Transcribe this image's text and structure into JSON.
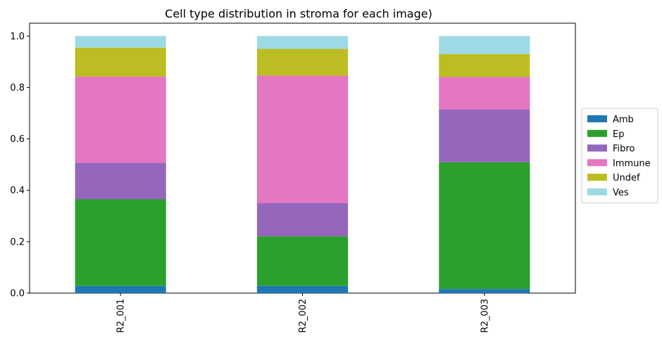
{
  "chart_data": {
    "type": "bar",
    "stacked": true,
    "title": "Cell type distribution in stroma for each image)",
    "xlabel": "",
    "ylabel": "",
    "ylim": [
      0,
      1.05
    ],
    "yticks": [
      "0.0",
      "0.2",
      "0.4",
      "0.6",
      "0.8",
      "1.0"
    ],
    "categories": [
      "R2_001",
      "R2_002",
      "R2_003"
    ],
    "series": [
      {
        "name": "Amb",
        "color": "#1f77b4",
        "values": [
          0.028,
          0.028,
          0.016
        ]
      },
      {
        "name": "Ep",
        "color": "#2ca02c",
        "values": [
          0.337,
          0.193,
          0.493
        ]
      },
      {
        "name": "Fibro",
        "color": "#9467bd",
        "values": [
          0.142,
          0.129,
          0.205
        ]
      },
      {
        "name": "Immune",
        "color": "#e377c2",
        "values": [
          0.335,
          0.496,
          0.127
        ]
      },
      {
        "name": "Undef",
        "color": "#bcbd22",
        "values": [
          0.113,
          0.104,
          0.089
        ]
      },
      {
        "name": "Ves",
        "color": "#9edae5",
        "values": [
          0.045,
          0.05,
          0.07
        ]
      }
    ],
    "legend_position": "right"
  }
}
